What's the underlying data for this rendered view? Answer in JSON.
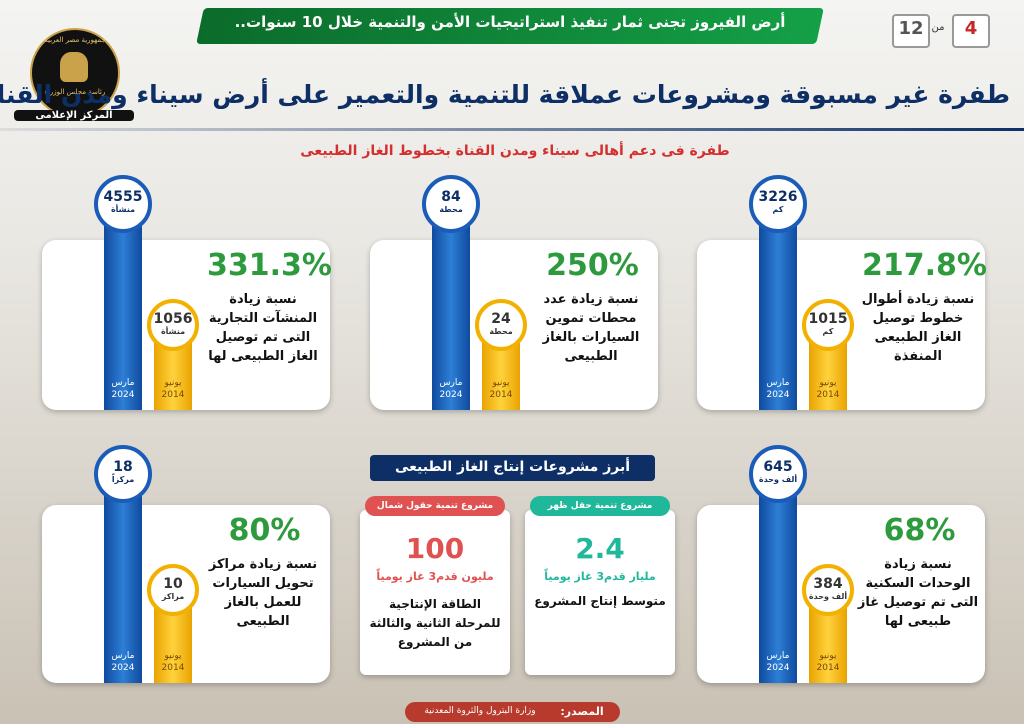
{
  "header": {
    "page": "4",
    "of": "من",
    "total": "12",
    "series_title": "أرض الفيروز تجنى ثمار تنفيذ استراتيجيات الأمن والتنمية خلال 10 سنوات..",
    "logo_lines": [
      "جمهورية مصر العربية",
      "رئاسة مجلس الوزراء",
      "المركز الإعلامى"
    ],
    "title": "طفرة غير مسبوقة ومشروعات عملاقة للتنمية والتعمير على أرض سيناء ومدن القناة",
    "subtitle": "طفرة فى دعم أهالى سيناء ومدن القناة بخطوط الغاز الطبيعى"
  },
  "cards": [
    {
      "percent": "217.8%",
      "text": "نسبة زيادة أطوال خطوط توصيل الغاز الطبيعى المنفذة",
      "after": {
        "value": "3226",
        "unit": "كم",
        "month": "مارس",
        "year": "2024"
      },
      "before": {
        "value": "1015",
        "unit": "كم",
        "month": "يونيو",
        "year": "2014"
      }
    },
    {
      "percent": "250%",
      "text": "نسبة زيادة عدد محطات تموين السيارات بالغاز الطبيعى",
      "after": {
        "value": "84",
        "unit": "محطة",
        "month": "مارس",
        "year": "2024"
      },
      "before": {
        "value": "24",
        "unit": "محطة",
        "month": "يونيو",
        "year": "2014"
      }
    },
    {
      "percent": "331.3%",
      "text": "نسبة زيادة المنشآت التجارية التى تم توصيل الغاز الطبيعى لها",
      "after": {
        "value": "4555",
        "unit": "منشأة",
        "month": "مارس",
        "year": "2024"
      },
      "before": {
        "value": "1056",
        "unit": "منشأة",
        "month": "يونيو",
        "year": "2014"
      }
    },
    {
      "percent": "68%",
      "text": "نسبة زيادة الوحدات السكنية التى تم توصيل غاز طبيعى لها",
      "after": {
        "value": "645",
        "unit": "ألف وحدة",
        "month": "مارس",
        "year": "2024"
      },
      "before": {
        "value": "384",
        "unit": "ألف وحدة",
        "month": "يونيو",
        "year": "2014"
      }
    },
    {
      "percent": "80%",
      "text": "نسبة زيادة مراكز تحويل السيارات للعمل بالغاز الطبيعى",
      "after": {
        "value": "18",
        "unit": "مركزاً",
        "month": "مارس",
        "year": "2024"
      },
      "before": {
        "value": "10",
        "unit": "مراكز",
        "month": "يونيو",
        "year": "2014"
      }
    }
  ],
  "projects": {
    "heading": "أبرز مشروعات إنتاج الغاز الطبيعى",
    "items": [
      {
        "tag": "مشروع تنمية حقل ظهر",
        "value": "2.4",
        "unit": "مليار قدم3 غاز يومياً",
        "text": "متوسط إنتاج المشروع"
      },
      {
        "tag": "مشروع تنمية حقول شمال سيناء",
        "value": "100",
        "unit": "مليون قدم3 غاز يومياً",
        "text": "الطاقة الإنتاجية للمرحلة الثانية والثالثة من المشروع"
      }
    ]
  },
  "footer": {
    "source_label": "المصدر:",
    "source": "وزارة البترول والثروة المعدنية"
  }
}
